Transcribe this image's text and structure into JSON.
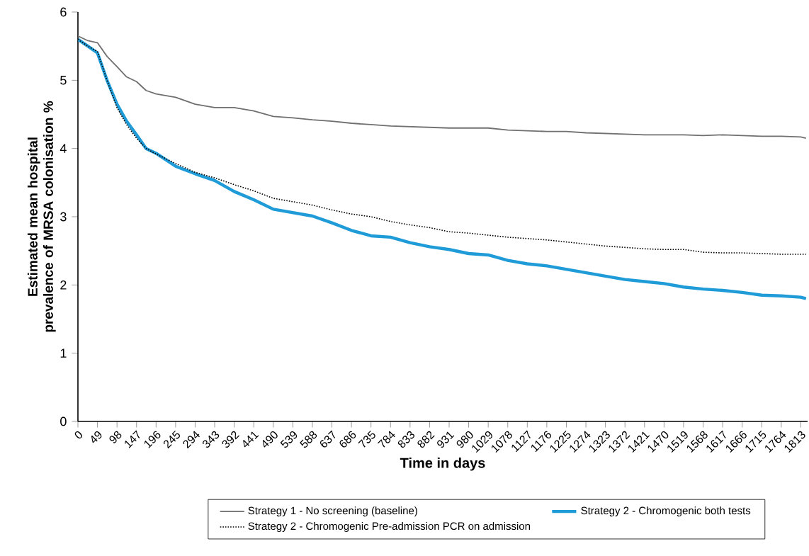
{
  "chart_data": {
    "type": "line",
    "xlabel": "Time in days",
    "ylabel": "Estimated mean hospital prevalence of MRSA colonisation %",
    "x": [
      0,
      25,
      49,
      73,
      98,
      122,
      147,
      171,
      196,
      245,
      294,
      343,
      392,
      441,
      490,
      539,
      588,
      637,
      686,
      735,
      784,
      833,
      882,
      931,
      980,
      1029,
      1078,
      1127,
      1176,
      1225,
      1274,
      1323,
      1372,
      1421,
      1470,
      1519,
      1568,
      1617,
      1666,
      1715,
      1764,
      1813,
      1826
    ],
    "xlim": [
      0,
      1830
    ],
    "ylim": [
      0,
      6
    ],
    "xticks": [
      0,
      49,
      98,
      147,
      196,
      245,
      294,
      343,
      392,
      441,
      490,
      539,
      588,
      637,
      686,
      735,
      784,
      833,
      882,
      931,
      980,
      1029,
      1078,
      1127,
      1176,
      1225,
      1274,
      1323,
      1372,
      1421,
      1470,
      1519,
      1568,
      1617,
      1666,
      1715,
      1764,
      1813
    ],
    "yticks": [
      0,
      1,
      2,
      3,
      4,
      5,
      6
    ],
    "legend": "bottom",
    "grid": false,
    "marker": "none",
    "series": [
      {
        "name": "Strategy 1 - No screening (baseline)",
        "color": "#707070",
        "line_style": "solid",
        "values": [
          5.65,
          5.58,
          5.55,
          5.35,
          5.2,
          5.05,
          4.98,
          4.85,
          4.8,
          4.75,
          4.65,
          4.6,
          4.6,
          4.55,
          4.47,
          4.45,
          4.42,
          4.4,
          4.37,
          4.35,
          4.33,
          4.32,
          4.31,
          4.3,
          4.3,
          4.3,
          4.27,
          4.26,
          4.25,
          4.25,
          4.23,
          4.22,
          4.21,
          4.2,
          4.2,
          4.2,
          4.19,
          4.2,
          4.19,
          4.18,
          4.18,
          4.17,
          4.15
        ]
      },
      {
        "name": "Strategy 2 - Chromogenic both tests",
        "color": "#1f9bd7",
        "line_style": "solid",
        "values": [
          5.6,
          5.5,
          5.4,
          5.0,
          4.65,
          4.4,
          4.2,
          4.0,
          3.93,
          3.74,
          3.63,
          3.53,
          3.37,
          3.25,
          3.11,
          3.06,
          3.01,
          2.91,
          2.8,
          2.72,
          2.7,
          2.62,
          2.56,
          2.52,
          2.46,
          2.44,
          2.36,
          2.31,
          2.28,
          2.23,
          2.18,
          2.13,
          2.08,
          2.05,
          2.02,
          1.97,
          1.94,
          1.92,
          1.89,
          1.85,
          1.84,
          1.82,
          1.8
        ]
      },
      {
        "name": "Strategy 2 - Chromogenic Pre-admission PCR on admission",
        "color": "#000000",
        "line_style": "dotted",
        "values": [
          5.6,
          5.5,
          5.42,
          5.0,
          4.6,
          4.35,
          4.15,
          4.0,
          3.92,
          3.78,
          3.65,
          3.57,
          3.47,
          3.38,
          3.27,
          3.22,
          3.17,
          3.1,
          3.04,
          3.0,
          2.93,
          2.88,
          2.84,
          2.78,
          2.76,
          2.73,
          2.7,
          2.68,
          2.66,
          2.63,
          2.6,
          2.57,
          2.55,
          2.53,
          2.52,
          2.52,
          2.48,
          2.47,
          2.47,
          2.46,
          2.45,
          2.45,
          2.45
        ]
      }
    ]
  }
}
